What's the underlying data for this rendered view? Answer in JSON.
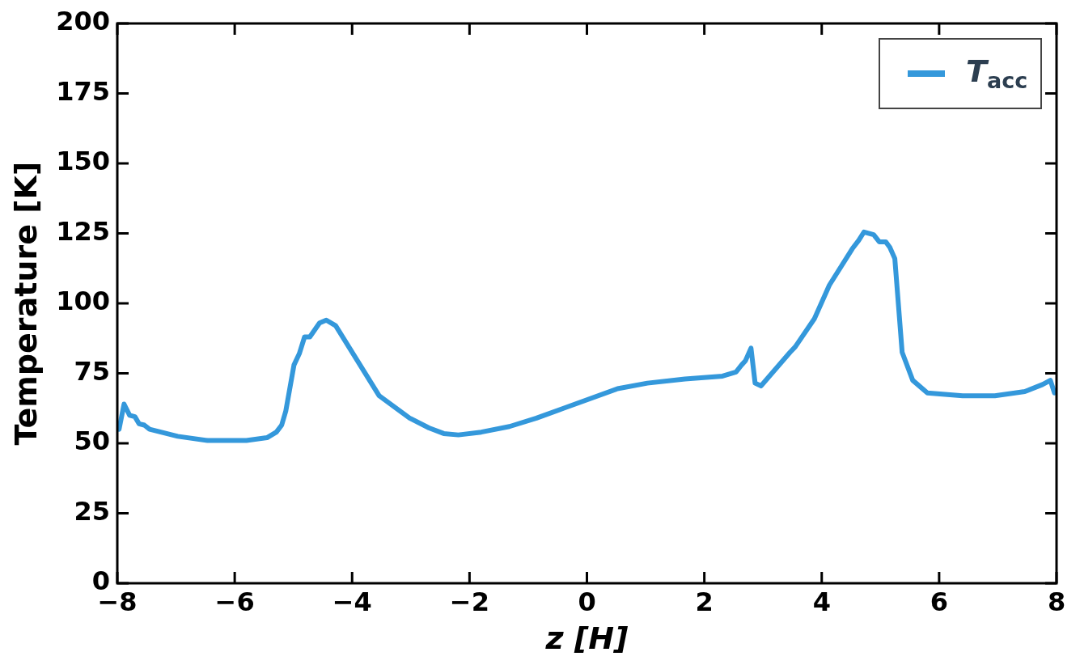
{
  "chart_data": {
    "type": "line",
    "xlabel": "z [H]",
    "ylabel": "Temperature [K]",
    "x": [
      -7.97,
      -7.885,
      -7.79,
      -7.7,
      -7.63,
      -7.54,
      -7.45,
      -6.97,
      -6.46,
      -5.8,
      -5.45,
      -5.29,
      -5.2,
      -5.13,
      -4.99,
      -4.9,
      -4.81,
      -4.72,
      -4.555,
      -4.44,
      -4.28,
      -3.54,
      -3.02,
      -2.69,
      -2.44,
      -2.19,
      -1.8,
      -1.32,
      -0.86,
      -0.4,
      0.52,
      1.03,
      1.67,
      2.31,
      2.54,
      2.635,
      2.7,
      2.795,
      2.865,
      2.966,
      3.46,
      3.55,
      3.875,
      4.13,
      4.52,
      4.63,
      4.72,
      4.885,
      4.98,
      5.09,
      5.16,
      5.245,
      5.37,
      5.55,
      5.8,
      6.4,
      6.95,
      7.46,
      7.76,
      7.895,
      7.965
    ],
    "series": [
      {
        "name": "T$_{acc}$",
        "color": "#3498db",
        "values": [
          55,
          64,
          60,
          59.5,
          57,
          56.5,
          55,
          52.5,
          51,
          51,
          52,
          54,
          56.5,
          61.5,
          78,
          82,
          88,
          88,
          93,
          94,
          92,
          67,
          59,
          55.5,
          53.5,
          53,
          54,
          56,
          59,
          62.5,
          69.5,
          71.5,
          73,
          74,
          75.5,
          78,
          79.5,
          84,
          71.5,
          70.5,
          82.5,
          84.5,
          94.5,
          106.5,
          119.5,
          122.5,
          125.5,
          124.5,
          122,
          122,
          120,
          116,
          82.5,
          72.5,
          68,
          67,
          67,
          68.5,
          71,
          72.5,
          68
        ]
      }
    ],
    "xlim": [
      -8,
      8
    ],
    "xticks": [
      {
        "value": -8,
        "label": "−8"
      },
      {
        "value": -6,
        "label": "−6"
      },
      {
        "value": -4,
        "label": "−4"
      },
      {
        "value": -2,
        "label": "−2"
      },
      0,
      2,
      4,
      6,
      8
    ],
    "ylim": [
      0,
      200
    ],
    "yticks": [
      0,
      25,
      50,
      75,
      100,
      125,
      150,
      175,
      200
    ],
    "legend": "top right",
    "marker": "none",
    "line_style": "solid"
  }
}
